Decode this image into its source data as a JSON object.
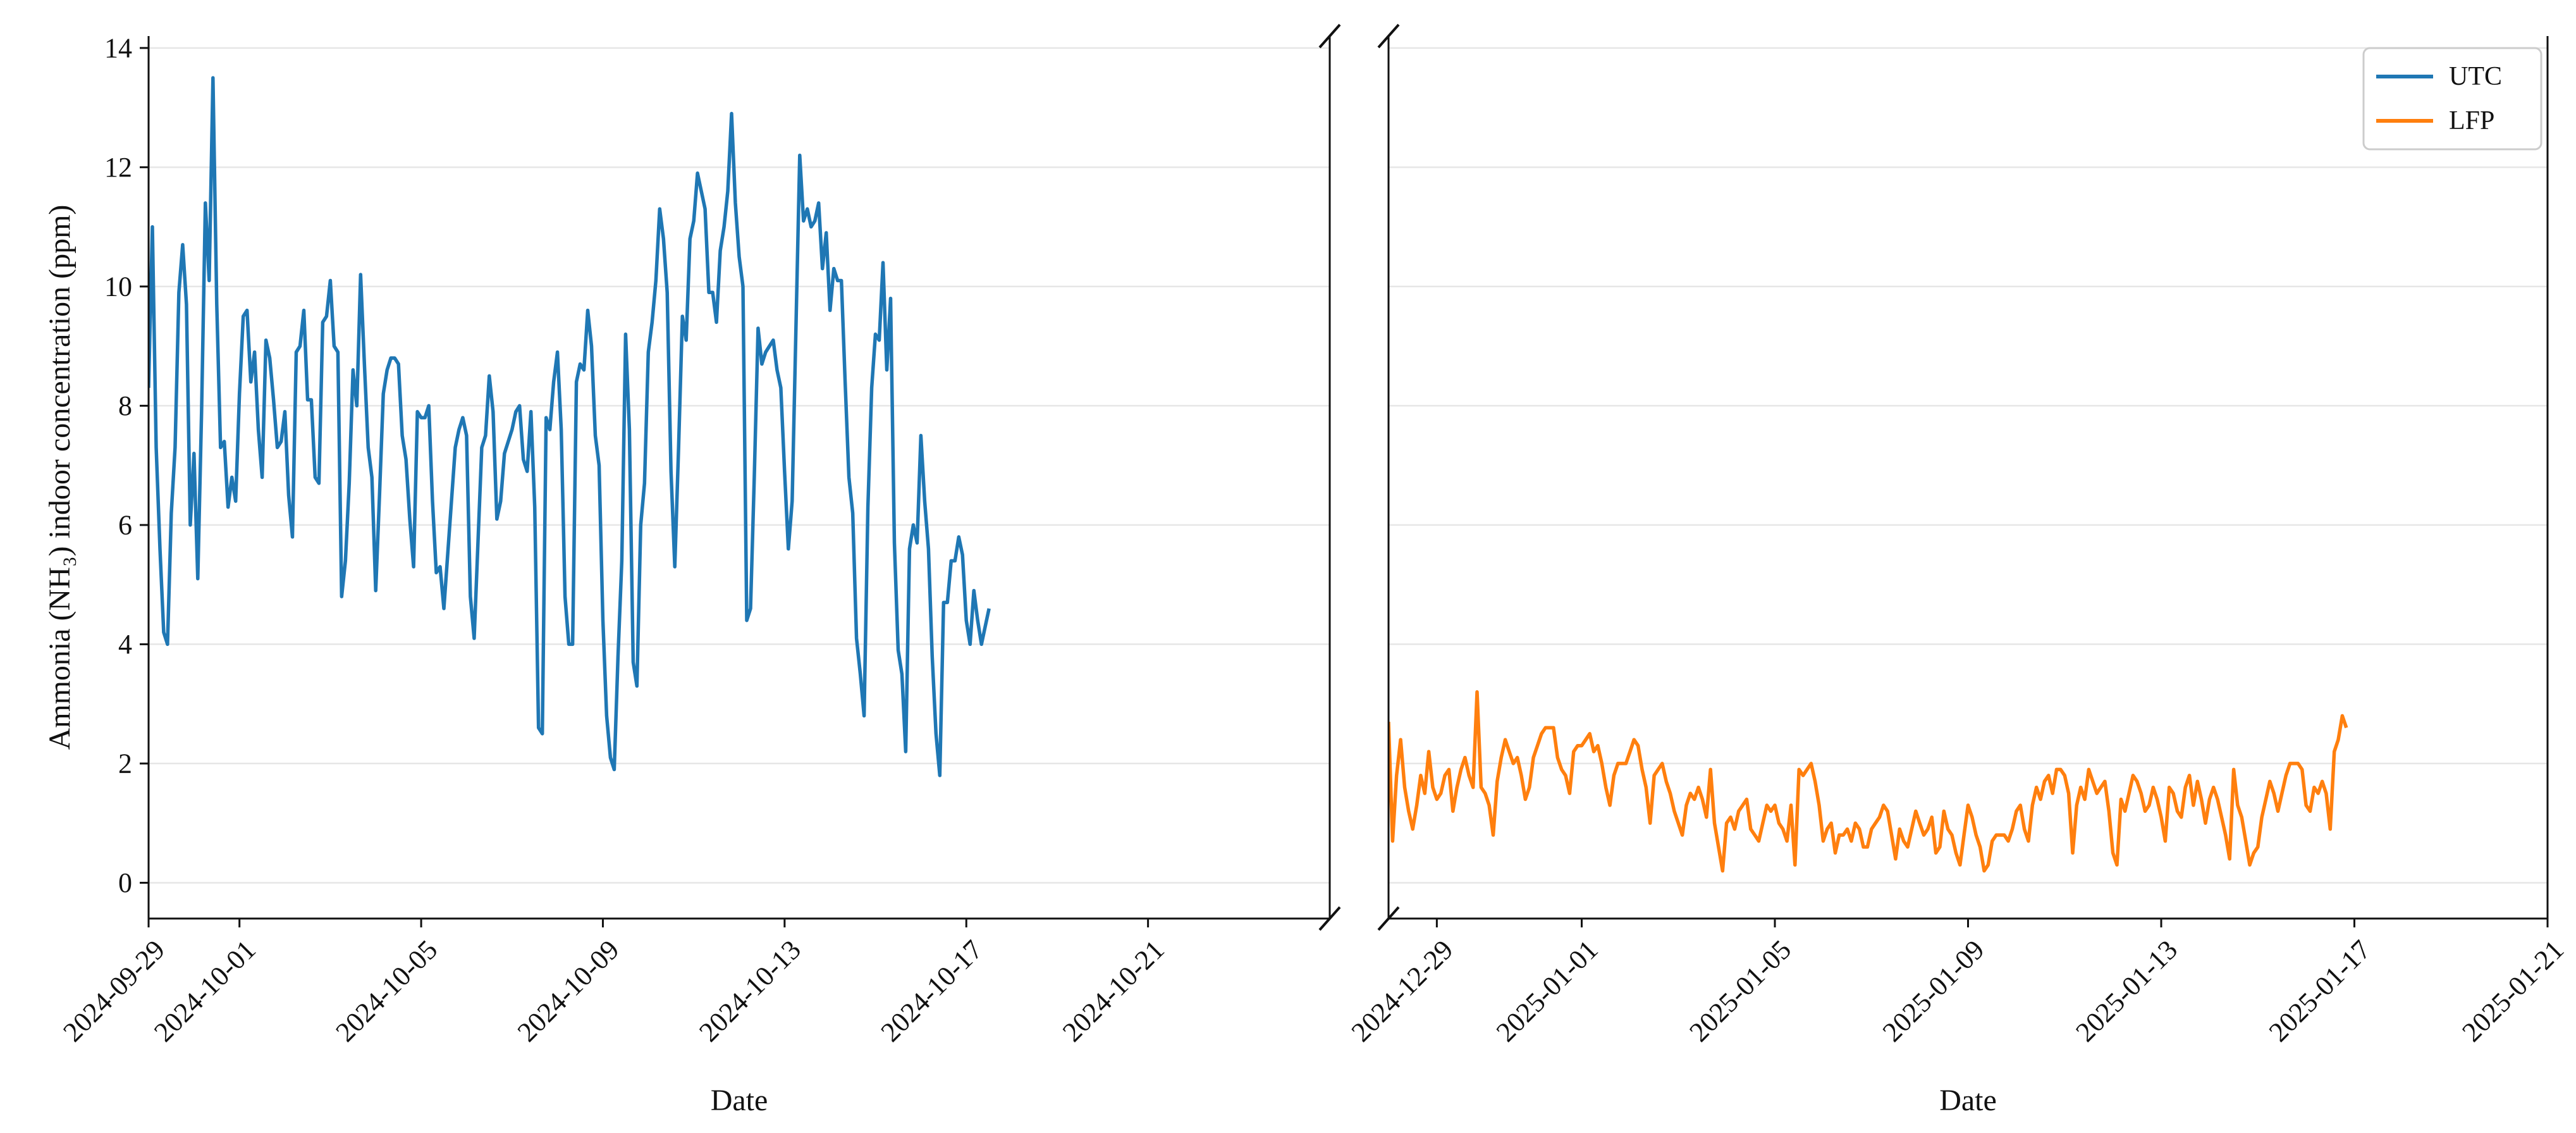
{
  "chart_data": {
    "type": "line",
    "layout": "broken-x-axis",
    "ylabel": "Ammonia (NH₃) indoor concentration (ppm)",
    "ylim": [
      -0.6,
      14.2
    ],
    "yticks": [
      0,
      2,
      4,
      6,
      8,
      10,
      12,
      14
    ],
    "grid": "horizontal",
    "legend": {
      "placement": "top-right",
      "entries": [
        {
          "name": "UTC",
          "color": "#1f77b4"
        },
        {
          "name": "LFP",
          "color": "#ff7f0e"
        }
      ]
    },
    "panels": [
      {
        "xlabel": "Date",
        "xlim": [
          "2024-09-29",
          "2024-10-25"
        ],
        "xticks": [
          "2024-09-29",
          "2024-10-01",
          "2024-10-05",
          "2024-10-09",
          "2024-10-13",
          "2024-10-17",
          "2024-10-21"
        ],
        "series": [
          {
            "name": "UTC",
            "color": "#1f77b4",
            "x_start": "2024-09-29T00:00",
            "step_hours": 2,
            "values": [
              8.3,
              11.0,
              7.3,
              5.6,
              4.2,
              4.0,
              6.2,
              7.3,
              9.9,
              10.7,
              9.7,
              6.0,
              7.2,
              5.1,
              7.9,
              11.4,
              10.1,
              13.5,
              9.7,
              7.3,
              7.4,
              6.3,
              6.8,
              6.4,
              8.2,
              9.5,
              9.6,
              8.4,
              8.9,
              7.6,
              6.8,
              9.1,
              8.8,
              8.1,
              7.3,
              7.4,
              7.9,
              6.5,
              5.8,
              8.9,
              9.0,
              9.6,
              8.1,
              8.1,
              6.8,
              6.7,
              9.4,
              9.5,
              10.1,
              9.0,
              8.9,
              4.8,
              5.4,
              6.7,
              8.6,
              8.0,
              10.2,
              8.7,
              7.3,
              6.8,
              4.9,
              6.5,
              8.2,
              8.6,
              8.8,
              8.8,
              8.7,
              7.5,
              7.1,
              6.1,
              5.3,
              7.9,
              7.8,
              7.8,
              8.0,
              6.4,
              5.2,
              5.3,
              4.6,
              5.5,
              6.4,
              7.3,
              7.6,
              7.8,
              7.5,
              4.8,
              4.1,
              5.7,
              7.3,
              7.5,
              8.5,
              7.9,
              6.1,
              6.4,
              7.2,
              7.4,
              7.6,
              7.9,
              8.0,
              7.1,
              6.9,
              7.9,
              6.3,
              2.6,
              2.5,
              7.8,
              7.6,
              8.4,
              8.9,
              7.6,
              4.8,
              4.0,
              4.0,
              8.4,
              8.7,
              8.6,
              9.6,
              9.0,
              7.5,
              7.0,
              4.4,
              2.8,
              2.1,
              1.9,
              3.8,
              5.4,
              9.2,
              7.6,
              3.7,
              3.3,
              6.0,
              6.7,
              8.9,
              9.4,
              10.1,
              11.3,
              10.8,
              9.9,
              6.9,
              5.3,
              7.3,
              9.5,
              9.1,
              10.8,
              11.1,
              11.9,
              11.6,
              11.3,
              9.9,
              9.9,
              9.4,
              10.6,
              11.0,
              11.6,
              12.9,
              11.4,
              10.5,
              10.0,
              4.4,
              4.6,
              6.8,
              9.3,
              8.7,
              8.9,
              9.0,
              9.1,
              8.6,
              8.3,
              6.9,
              5.6,
              6.4,
              9.3,
              12.2,
              11.1,
              11.3,
              11.0,
              11.1,
              11.4,
              10.3,
              10.9,
              9.6,
              10.3,
              10.1,
              10.1,
              8.4,
              6.8,
              6.2,
              4.1,
              3.5,
              2.8,
              6.3,
              8.3,
              9.2,
              9.1,
              10.4,
              8.6,
              9.8,
              5.7,
              3.9,
              3.5,
              2.2,
              5.6,
              6.0,
              5.7,
              7.5,
              6.4,
              5.6,
              3.8,
              2.5,
              1.8,
              4.7,
              4.7,
              5.4,
              5.4,
              5.8,
              5.5,
              4.4,
              4.0,
              4.9,
              4.4,
              4.0,
              4.3,
              4.6
            ]
          }
        ]
      },
      {
        "xlabel": "Date",
        "xlim": [
          "2024-12-28",
          "2025-01-21"
        ],
        "xticks": [
          "2024-12-29",
          "2025-01-01",
          "2025-01-05",
          "2025-01-09",
          "2025-01-13",
          "2025-01-17",
          "2025-01-21"
        ],
        "series": [
          {
            "name": "LFP",
            "color": "#ff7f0e",
            "x_start": "2024-12-28T00:00",
            "step_hours": 2,
            "values": [
              2.7,
              0.7,
              1.8,
              2.4,
              1.6,
              1.2,
              0.9,
              1.3,
              1.8,
              1.5,
              2.2,
              1.6,
              1.4,
              1.5,
              1.8,
              1.9,
              1.2,
              1.6,
              1.9,
              2.1,
              1.8,
              1.6,
              3.2,
              1.6,
              1.5,
              1.3,
              0.8,
              1.7,
              2.1,
              2.4,
              2.2,
              2.0,
              2.1,
              1.8,
              1.4,
              1.6,
              2.1,
              2.3,
              2.5,
              2.6,
              2.6,
              2.6,
              2.1,
              1.9,
              1.8,
              1.5,
              2.2,
              2.3,
              2.3,
              2.4,
              2.5,
              2.2,
              2.3,
              2.0,
              1.6,
              1.3,
              1.8,
              2.0,
              2.0,
              2.0,
              2.2,
              2.4,
              2.3,
              1.9,
              1.6,
              1.0,
              1.8,
              1.9,
              2.0,
              1.7,
              1.5,
              1.2,
              1.0,
              0.8,
              1.3,
              1.5,
              1.4,
              1.6,
              1.4,
              1.1,
              1.9,
              1.0,
              0.6,
              0.2,
              1.0,
              1.1,
              0.9,
              1.2,
              1.3,
              1.4,
              0.9,
              0.8,
              0.7,
              1.0,
              1.3,
              1.2,
              1.3,
              1.0,
              0.9,
              0.7,
              1.3,
              0.3,
              1.9,
              1.8,
              1.9,
              2.0,
              1.7,
              1.3,
              0.7,
              0.9,
              1.0,
              0.5,
              0.8,
              0.8,
              0.9,
              0.7,
              1.0,
              0.9,
              0.6,
              0.6,
              0.9,
              1.0,
              1.1,
              1.3,
              1.2,
              0.8,
              0.4,
              0.9,
              0.7,
              0.6,
              0.9,
              1.2,
              1.0,
              0.8,
              0.9,
              1.1,
              0.5,
              0.6,
              1.2,
              0.9,
              0.8,
              0.5,
              0.3,
              0.8,
              1.3,
              1.1,
              0.8,
              0.6,
              0.2,
              0.3,
              0.7,
              0.8,
              0.8,
              0.8,
              0.7,
              0.9,
              1.2,
              1.3,
              0.9,
              0.7,
              1.3,
              1.6,
              1.4,
              1.7,
              1.8,
              1.5,
              1.9,
              1.9,
              1.8,
              1.5,
              0.5,
              1.3,
              1.6,
              1.4,
              1.9,
              1.7,
              1.5,
              1.6,
              1.7,
              1.2,
              0.5,
              0.3,
              1.4,
              1.2,
              1.5,
              1.8,
              1.7,
              1.5,
              1.2,
              1.3,
              1.6,
              1.4,
              1.1,
              0.7,
              1.6,
              1.5,
              1.2,
              1.1,
              1.6,
              1.8,
              1.3,
              1.7,
              1.4,
              1.0,
              1.4,
              1.6,
              1.4,
              1.1,
              0.8,
              0.4,
              1.9,
              1.3,
              1.1,
              0.7,
              0.3,
              0.5,
              0.6,
              1.1,
              1.4,
              1.7,
              1.5,
              1.2,
              1.5,
              1.8,
              2.0,
              2.0,
              2.0,
              1.9,
              1.3,
              1.2,
              1.6,
              1.5,
              1.7,
              1.5,
              0.9,
              2.2,
              2.4,
              2.8,
              2.6
            ]
          }
        ]
      }
    ]
  }
}
